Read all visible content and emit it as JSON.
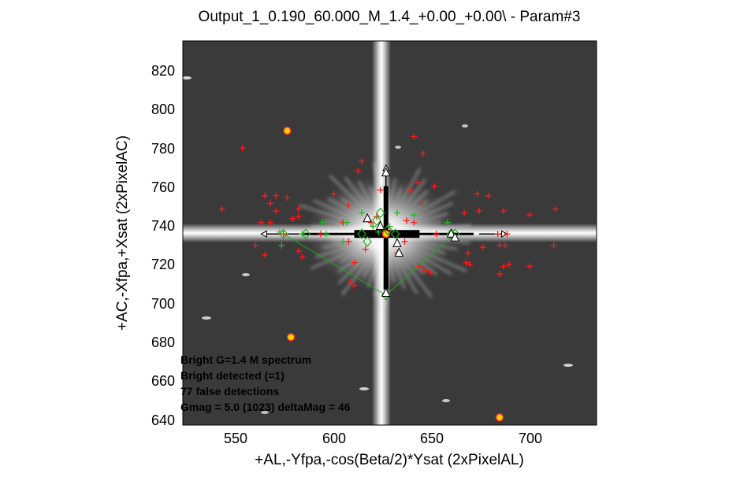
{
  "chart_data": {
    "type": "scatter",
    "title": "Output_1_0.190_60.000_M_1.4_+0.00_+0.00\\ - Param#3",
    "xlabel": "+AL,-Yfpa,-cos(Beta/2)*Ysat (2xPixelAL)",
    "ylabel": "+AC,-Xfpa,+Xsat (2xPixelAC)",
    "xlim": [
      516,
      738
    ],
    "ylim": [
      637,
      838
    ],
    "xticks": [
      "550",
      "600",
      "650",
      "700"
    ],
    "yticks": [
      "640",
      "660",
      "680",
      "700",
      "720",
      "740",
      "760",
      "780",
      "800",
      "820"
    ],
    "background": "grayscale image: saturated bright star at center with diffraction spikes",
    "bright_star": {
      "x": 625,
      "y": 737
    },
    "annotations": [
      "Bright G=1.4 M spectrum",
      "Bright detected (=1)",
      "77 false detections",
      "Gmag = 5.0 (1023) deltaMag =  46"
    ],
    "series": [
      {
        "marker": "plus",
        "color": "#ff1a1a",
        "points": [
          [
            537,
            750
          ],
          [
            548,
            782
          ],
          [
            555,
            731
          ],
          [
            558,
            743
          ],
          [
            560,
            726
          ],
          [
            560,
            757
          ],
          [
            563,
            743
          ],
          [
            563,
            753
          ],
          [
            566,
            749
          ],
          [
            566,
            757
          ],
          [
            570,
            737
          ],
          [
            572,
            756
          ],
          [
            575,
            745
          ],
          [
            578,
            728
          ],
          [
            578,
            746
          ],
          [
            578,
            750
          ],
          [
            580,
            725
          ],
          [
            590,
            737
          ],
          [
            597,
            758
          ],
          [
            602,
            743
          ],
          [
            605,
            733
          ],
          [
            605,
            752
          ],
          [
            606,
            712
          ],
          [
            608,
            710
          ],
          [
            608,
            722
          ],
          [
            610,
            770
          ],
          [
            612,
            775
          ],
          [
            614,
            729
          ],
          [
            617,
            743
          ],
          [
            618,
            741
          ],
          [
            620,
            746
          ],
          [
            622,
            760
          ],
          [
            631,
            727
          ],
          [
            635,
            733
          ],
          [
            636,
            744
          ],
          [
            638,
            760
          ],
          [
            640,
            743
          ],
          [
            640,
            788
          ],
          [
            642,
            764
          ],
          [
            643,
            720
          ],
          [
            644,
            753
          ],
          [
            645,
            779
          ],
          [
            646,
            718
          ],
          [
            649,
            717
          ],
          [
            651,
            762
          ],
          [
            652,
            737
          ],
          [
            667,
            748
          ],
          [
            668,
            722
          ],
          [
            669,
            727
          ],
          [
            670,
            721
          ],
          [
            674,
            758
          ],
          [
            675,
            749
          ],
          [
            677,
            730
          ],
          [
            680,
            757
          ],
          [
            685,
            737
          ],
          [
            686,
            731
          ],
          [
            686,
            716
          ],
          [
            688,
            720
          ],
          [
            688,
            749
          ],
          [
            689,
            731
          ],
          [
            690,
            737
          ],
          [
            691,
            721
          ],
          [
            702,
            747
          ],
          [
            702,
            720
          ],
          [
            715,
            731
          ],
          [
            716,
            750
          ]
        ]
      },
      {
        "marker": "plus",
        "color": "#22bb22",
        "points": [
          [
            568,
            738
          ],
          [
            569,
            731
          ],
          [
            580,
            737
          ],
          [
            591,
            743
          ],
          [
            593,
            737
          ],
          [
            602,
            733
          ],
          [
            604,
            743
          ],
          [
            612,
            748
          ],
          [
            618,
            741
          ],
          [
            621,
            738
          ],
          [
            627,
            741
          ],
          [
            631,
            748
          ],
          [
            640,
            747
          ],
          [
            658,
            743
          ]
        ]
      },
      {
        "marker": "circle",
        "color": "#ff2a2a",
        "points": [
          [
            572,
            791
          ],
          [
            574,
            683
          ],
          [
            686,
            641
          ],
          [
            625,
            737
          ]
        ]
      },
      {
        "marker": "diamond",
        "color": "#22aa22",
        "points": [
          [
            570,
            737
          ],
          [
            582,
            737
          ],
          [
            612,
            737
          ],
          [
            615,
            733
          ],
          [
            620,
            744
          ],
          [
            622,
            748
          ],
          [
            625,
            705
          ],
          [
            626,
            739
          ],
          [
            630,
            737
          ],
          [
            660,
            737
          ],
          [
            662,
            737
          ]
        ]
      },
      {
        "marker": "triangle",
        "color": "#000000",
        "points": [
          [
            615,
            745
          ],
          [
            625,
            769
          ],
          [
            625,
            706
          ],
          [
            622,
            741
          ],
          [
            631,
            732
          ],
          [
            632,
            727
          ],
          [
            660,
            737
          ],
          [
            662,
            735
          ]
        ]
      }
    ],
    "vectors": [
      {
        "from": [
          580,
          737
        ],
        "to": [
          558,
          737
        ]
      },
      {
        "from": [
          675,
          737
        ],
        "to": [
          690,
          737
        ]
      },
      {
        "from": [
          625,
          760
        ],
        "to": [
          625,
          773
        ]
      }
    ]
  }
}
